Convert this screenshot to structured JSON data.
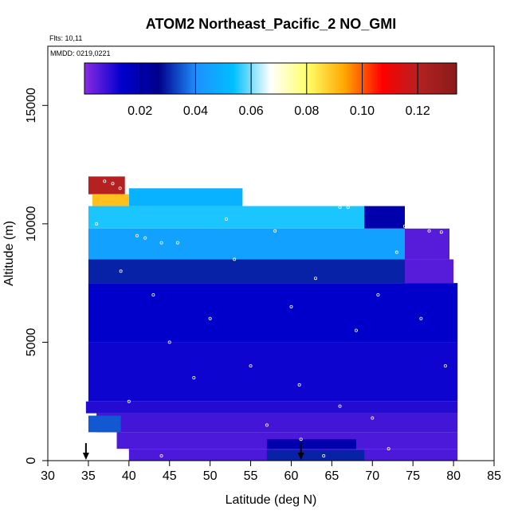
{
  "chart_data": {
    "type": "heatmap",
    "title": "ATOM2 Northeast_Pacific_2 NO_GMI",
    "flights_label": "Flts: 10,11",
    "dates_label": "MMDD: 0219,0221",
    "xlabel": "Latitude (deg N)",
    "ylabel": "Altitude (m)",
    "xlim": [
      30,
      85
    ],
    "ylim": [
      0,
      17500
    ],
    "x_ticks": [
      "30",
      "35",
      "40",
      "45",
      "50",
      "55",
      "60",
      "65",
      "70",
      "75",
      "80",
      "85"
    ],
    "y_ticks": [
      "0",
      "5000",
      "10000",
      "15000"
    ],
    "colorbar": {
      "range": [
        0,
        0.134
      ],
      "ticks": [
        0.02,
        0.04,
        0.06,
        0.08,
        0.1,
        0.12
      ],
      "tick_labels": [
        "0.02",
        "0.04",
        "0.06",
        "0.08",
        "0.10",
        "0.12"
      ],
      "colors": [
        "#8a2be2",
        "#0000cd",
        "#00008b",
        "#1e90ff",
        "#00bfff",
        "#ffffff",
        "#ffff66",
        "#ffa500",
        "#ff0000",
        "#b22222",
        "#8b1a1a"
      ]
    },
    "arrows_latitude": [
      34.7,
      61.2
    ],
    "regions": [
      {
        "lat": [
          35.0,
          39.5
        ],
        "alt": [
          11250,
          12000
        ],
        "value": 0.12
      },
      {
        "lat": [
          35.5,
          40.0
        ],
        "alt": [
          10750,
          11250
        ],
        "value": 0.09
      },
      {
        "lat": [
          40.0,
          54.0
        ],
        "alt": [
          10750,
          11500
        ],
        "value": 0.05
      },
      {
        "lat": [
          35.0,
          69.0
        ],
        "alt": [
          9800,
          10750
        ],
        "value": 0.055
      },
      {
        "lat": [
          69.0,
          74.0
        ],
        "alt": [
          9800,
          10750
        ],
        "value": 0.02
      },
      {
        "lat": [
          35.0,
          74.0
        ],
        "alt": [
          8500,
          9800
        ],
        "value": 0.045
      },
      {
        "lat": [
          74.0,
          79.5
        ],
        "alt": [
          8500,
          9800
        ],
        "value": 0.005
      },
      {
        "lat": [
          35.0,
          74.0
        ],
        "alt": [
          7500,
          8500
        ],
        "value": 0.03
      },
      {
        "lat": [
          74.0,
          80.0
        ],
        "alt": [
          7500,
          8500
        ],
        "value": 0.005
      },
      {
        "lat": [
          35.0,
          80.5
        ],
        "alt": [
          5000,
          7500
        ],
        "value": 0.014
      },
      {
        "lat": [
          35.0,
          80.5
        ],
        "alt": [
          2500,
          5000
        ],
        "value": 0.012
      },
      {
        "lat": [
          34.7,
          80.5
        ],
        "alt": [
          2000,
          2500
        ],
        "value": 0.01
      },
      {
        "lat": [
          36.0,
          80.5
        ],
        "alt": [
          1200,
          2000
        ],
        "value": 0.007
      },
      {
        "lat": [
          35.0,
          39.0
        ],
        "alt": [
          1200,
          1900
        ],
        "value": 0.035
      },
      {
        "lat": [
          38.5,
          80.5
        ],
        "alt": [
          500,
          1200
        ],
        "value": 0.006
      },
      {
        "lat": [
          57.0,
          68.0
        ],
        "alt": [
          400,
          900
        ],
        "value": 0.02
      },
      {
        "lat": [
          40.0,
          80.5
        ],
        "alt": [
          0,
          500
        ],
        "value": 0.006
      },
      {
        "lat": [
          57.0,
          69.0
        ],
        "alt": [
          0,
          450
        ],
        "value": 0.03
      }
    ],
    "flight_points": [
      {
        "lat": 37.0,
        "alt": 11800
      },
      {
        "lat": 38.0,
        "alt": 11700
      },
      {
        "lat": 38.9,
        "alt": 11500
      },
      {
        "lat": 41.0,
        "alt": 9500
      },
      {
        "lat": 42.0,
        "alt": 9400
      },
      {
        "lat": 44.0,
        "alt": 9200
      },
      {
        "lat": 46.0,
        "alt": 9200
      },
      {
        "lat": 52.0,
        "alt": 10200
      },
      {
        "lat": 58.0,
        "alt": 9700
      },
      {
        "lat": 66.0,
        "alt": 10700
      },
      {
        "lat": 67.0,
        "alt": 10700
      },
      {
        "lat": 74.0,
        "alt": 9900
      },
      {
        "lat": 77.0,
        "alt": 9700
      },
      {
        "lat": 78.5,
        "alt": 9650
      },
      {
        "lat": 73.0,
        "alt": 8800
      },
      {
        "lat": 63.0,
        "alt": 7700
      },
      {
        "lat": 70.7,
        "alt": 7000
      },
      {
        "lat": 60.0,
        "alt": 6500
      },
      {
        "lat": 50.0,
        "alt": 6000
      },
      {
        "lat": 45.0,
        "alt": 5000
      },
      {
        "lat": 55.0,
        "alt": 4000
      },
      {
        "lat": 61.0,
        "alt": 3200
      },
      {
        "lat": 66.0,
        "alt": 2300
      },
      {
        "lat": 70.0,
        "alt": 1800
      },
      {
        "lat": 72.0,
        "alt": 500
      },
      {
        "lat": 61.2,
        "alt": 900
      },
      {
        "lat": 44.0,
        "alt": 200
      },
      {
        "lat": 64.0,
        "alt": 200
      },
      {
        "lat": 36.0,
        "alt": 10000
      },
      {
        "lat": 39.0,
        "alt": 8000
      },
      {
        "lat": 43.0,
        "alt": 7000
      },
      {
        "lat": 48.0,
        "alt": 3500
      },
      {
        "lat": 57.0,
        "alt": 1500
      },
      {
        "lat": 68.0,
        "alt": 5500
      },
      {
        "lat": 76.0,
        "alt": 6000
      },
      {
        "lat": 79.0,
        "alt": 4000
      },
      {
        "lat": 53.0,
        "alt": 8500
      },
      {
        "lat": 40.0,
        "alt": 2500
      }
    ]
  }
}
